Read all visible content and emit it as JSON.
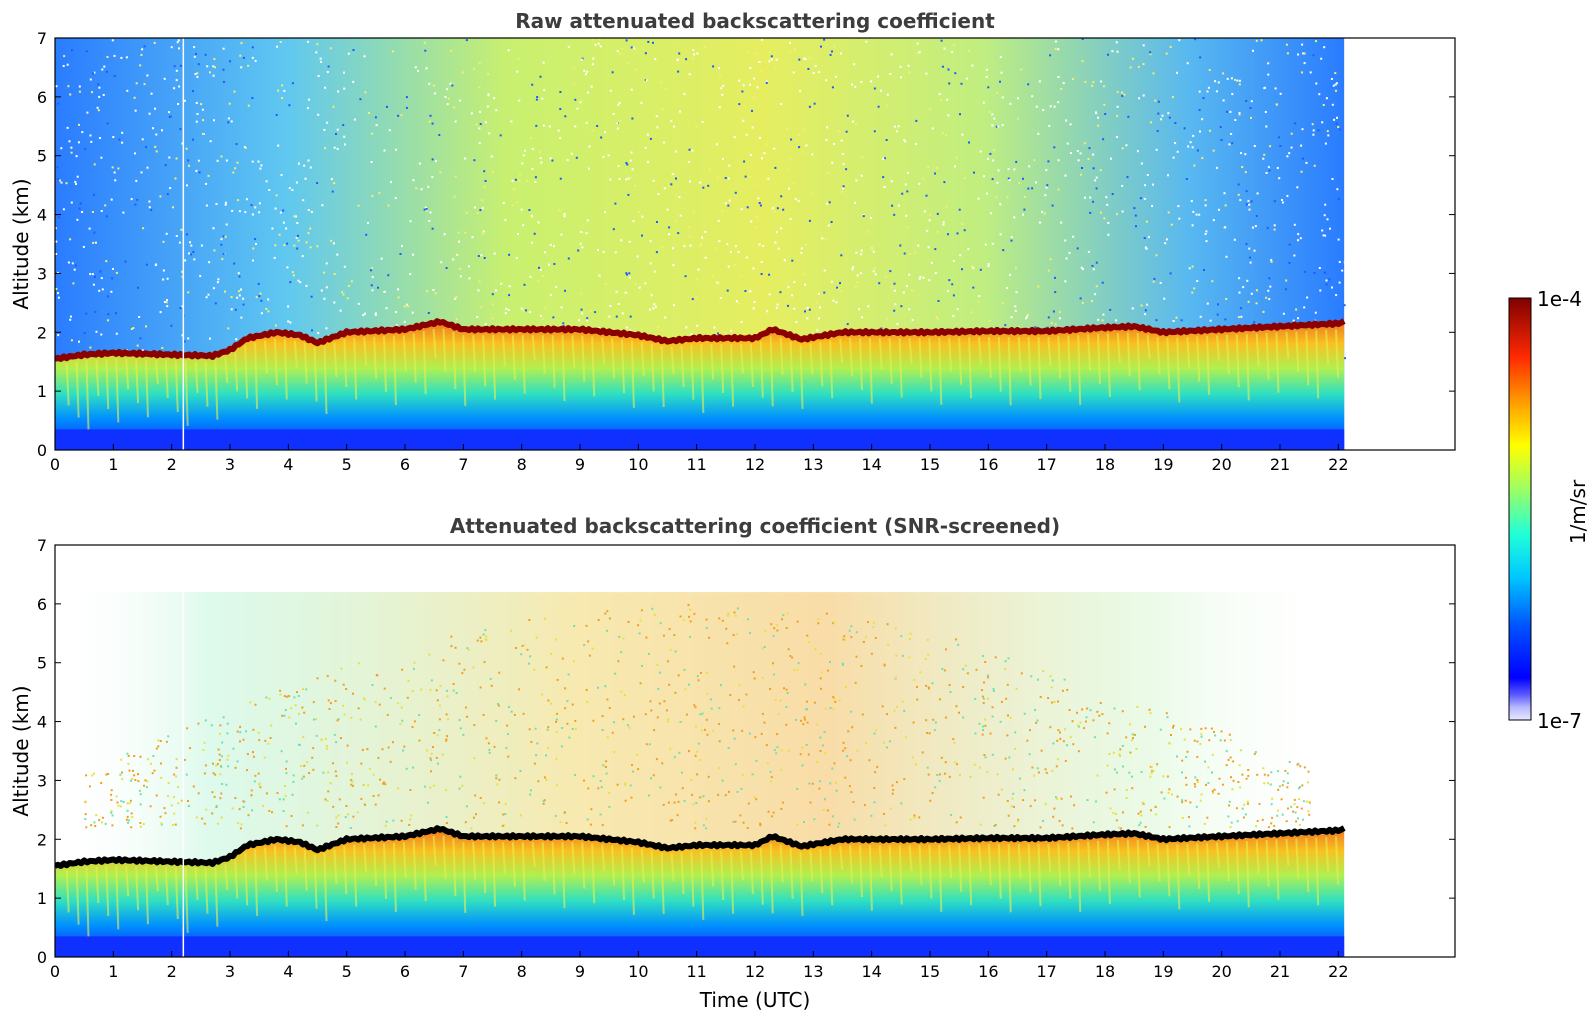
{
  "chart_data": [
    {
      "type": "heatmap",
      "title": "Raw attenuated backscattering coefficient",
      "xlabel": "",
      "ylabel": "Altitude (km)",
      "xlim": [
        0,
        24
      ],
      "ylim": [
        0,
        7
      ],
      "data_xmax": 22.1,
      "xticks": [
        "0",
        "1",
        "2",
        "3",
        "4",
        "5",
        "6",
        "7",
        "8",
        "9",
        "10",
        "11",
        "12",
        "13",
        "14",
        "15",
        "16",
        "17",
        "18",
        "19",
        "20",
        "21",
        "22"
      ],
      "yticks": [
        "0",
        "1",
        "2",
        "3",
        "4",
        "5",
        "6",
        "7"
      ],
      "screened": false,
      "layer_top_km": [
        [
          0,
          1.55
        ],
        [
          0.5,
          1.62
        ],
        [
          1,
          1.65
        ],
        [
          2,
          1.62
        ],
        [
          2.7,
          1.6
        ],
        [
          3,
          1.7
        ],
        [
          3.3,
          1.9
        ],
        [
          3.8,
          2.0
        ],
        [
          4.2,
          1.95
        ],
        [
          4.5,
          1.82
        ],
        [
          5,
          2.0
        ],
        [
          6,
          2.05
        ],
        [
          6.6,
          2.18
        ],
        [
          7,
          2.05
        ],
        [
          8,
          2.05
        ],
        [
          9,
          2.05
        ],
        [
          10,
          1.95
        ],
        [
          10.5,
          1.85
        ],
        [
          11,
          1.9
        ],
        [
          12,
          1.9
        ],
        [
          12.3,
          2.05
        ],
        [
          12.8,
          1.88
        ],
        [
          13.5,
          2.0
        ],
        [
          14,
          2.0
        ],
        [
          15,
          2.0
        ],
        [
          16,
          2.02
        ],
        [
          17,
          2.02
        ],
        [
          18,
          2.08
        ],
        [
          18.5,
          2.1
        ],
        [
          19,
          2.0
        ],
        [
          20,
          2.05
        ],
        [
          21,
          2.1
        ],
        [
          22,
          2.15
        ],
        [
          22.1,
          2.18
        ]
      ]
    },
    {
      "type": "heatmap",
      "title": "Attenuated backscattering coefficient (SNR-screened)",
      "xlabel": "Time (UTC)",
      "ylabel": "Altitude (km)",
      "xlim": [
        0,
        24
      ],
      "ylim": [
        0,
        7
      ],
      "data_xmax": 22.1,
      "xticks": [
        "0",
        "1",
        "2",
        "3",
        "4",
        "5",
        "6",
        "7",
        "8",
        "9",
        "10",
        "11",
        "12",
        "13",
        "14",
        "15",
        "16",
        "17",
        "18",
        "19",
        "20",
        "21",
        "22"
      ],
      "yticks": [
        "0",
        "1",
        "2",
        "3",
        "4",
        "5",
        "6",
        "7"
      ],
      "screened": true
    }
  ],
  "colorbar": {
    "label": "1/m/sr",
    "max_label": "1e-4",
    "min_label": "1e-7",
    "colormap": "jet",
    "cloud_color_raw": "#8b0000",
    "cloud_color_screened": "#000000"
  }
}
